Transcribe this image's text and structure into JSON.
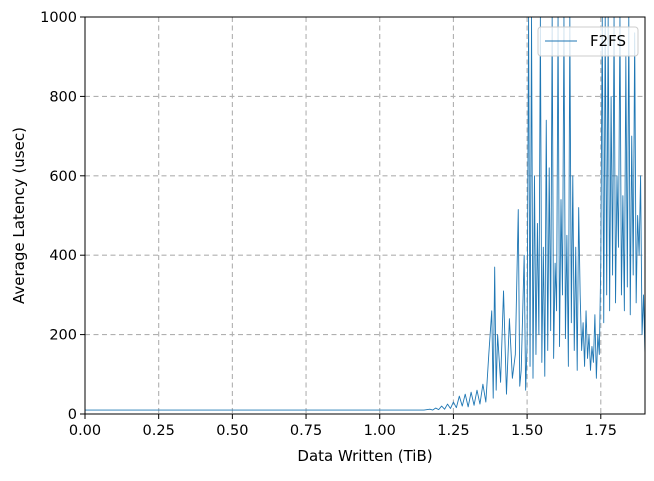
{
  "chart_data": {
    "type": "line",
    "xlabel": "Data Written (TiB)",
    "ylabel": "Average Latency (usec)",
    "xlim": [
      0,
      1.9
    ],
    "ylim": [
      0,
      1000
    ],
    "x_ticks": [
      "0.00",
      "0.25",
      "0.50",
      "0.75",
      "1.00",
      "1.25",
      "1.50",
      "1.75"
    ],
    "y_ticks": [
      "0",
      "200",
      "400",
      "600",
      "800",
      "1000"
    ],
    "grid": true,
    "legend_position": "top-right",
    "series": [
      {
        "name": "F2FS",
        "color": "#1f77b4",
        "x": [
          0.0,
          0.1,
          0.2,
          0.3,
          0.4,
          0.5,
          0.6,
          0.7,
          0.8,
          0.9,
          1.0,
          1.1,
          1.15,
          1.17,
          1.18,
          1.19,
          1.2,
          1.21,
          1.22,
          1.23,
          1.24,
          1.25,
          1.26,
          1.27,
          1.28,
          1.29,
          1.3,
          1.31,
          1.32,
          1.33,
          1.34,
          1.35,
          1.36,
          1.37,
          1.38,
          1.385,
          1.39,
          1.395,
          1.4,
          1.41,
          1.42,
          1.43,
          1.44,
          1.45,
          1.46,
          1.47,
          1.475,
          1.48,
          1.49,
          1.495,
          1.5,
          1.505,
          1.51,
          1.515,
          1.52,
          1.525,
          1.53,
          1.535,
          1.54,
          1.545,
          1.55,
          1.555,
          1.56,
          1.565,
          1.57,
          1.575,
          1.58,
          1.585,
          1.59,
          1.595,
          1.6,
          1.605,
          1.61,
          1.615,
          1.62,
          1.625,
          1.63,
          1.635,
          1.64,
          1.645,
          1.65,
          1.655,
          1.66,
          1.665,
          1.67,
          1.675,
          1.68,
          1.685,
          1.69,
          1.695,
          1.7,
          1.705,
          1.71,
          1.715,
          1.72,
          1.725,
          1.73,
          1.735,
          1.74,
          1.745,
          1.75,
          1.755,
          1.76,
          1.765,
          1.77,
          1.775,
          1.78,
          1.785,
          1.79,
          1.795,
          1.8,
          1.805,
          1.81,
          1.815,
          1.82,
          1.825,
          1.83,
          1.835,
          1.84,
          1.845,
          1.85,
          1.855,
          1.86,
          1.865,
          1.87,
          1.875,
          1.88,
          1.885,
          1.89,
          1.895,
          1.9
        ],
        "y": [
          10,
          10,
          10,
          10,
          10,
          10,
          10,
          10,
          10,
          10,
          10,
          10,
          10,
          12,
          10,
          15,
          11,
          20,
          12,
          25,
          14,
          30,
          16,
          45,
          20,
          50,
          18,
          55,
          22,
          60,
          25,
          75,
          30,
          150,
          260,
          40,
          370,
          60,
          200,
          80,
          310,
          50,
          240,
          90,
          150,
          515,
          70,
          110,
          400,
          60,
          180,
          1000,
          120,
          1000,
          90,
          600,
          150,
          480,
          200,
          1000,
          130,
          420,
          95,
          740,
          160,
          620,
          210,
          1000,
          140,
          380,
          260,
          1000,
          170,
          540,
          300,
          1000,
          190,
          450,
          120,
          1000,
          230,
          600,
          160,
          420,
          110,
          520,
          300,
          160,
          230,
          120,
          260,
          140,
          200,
          110,
          170,
          130,
          250,
          90,
          200,
          150,
          380,
          1000,
          230,
          1000,
          300,
          1000,
          260,
          800,
          350,
          1000,
          280,
          600,
          420,
          1000,
          300,
          550,
          260,
          900,
          320,
          1000,
          250,
          700,
          350,
          960,
          280,
          500,
          400,
          600,
          200,
          300,
          150
        ]
      }
    ]
  }
}
